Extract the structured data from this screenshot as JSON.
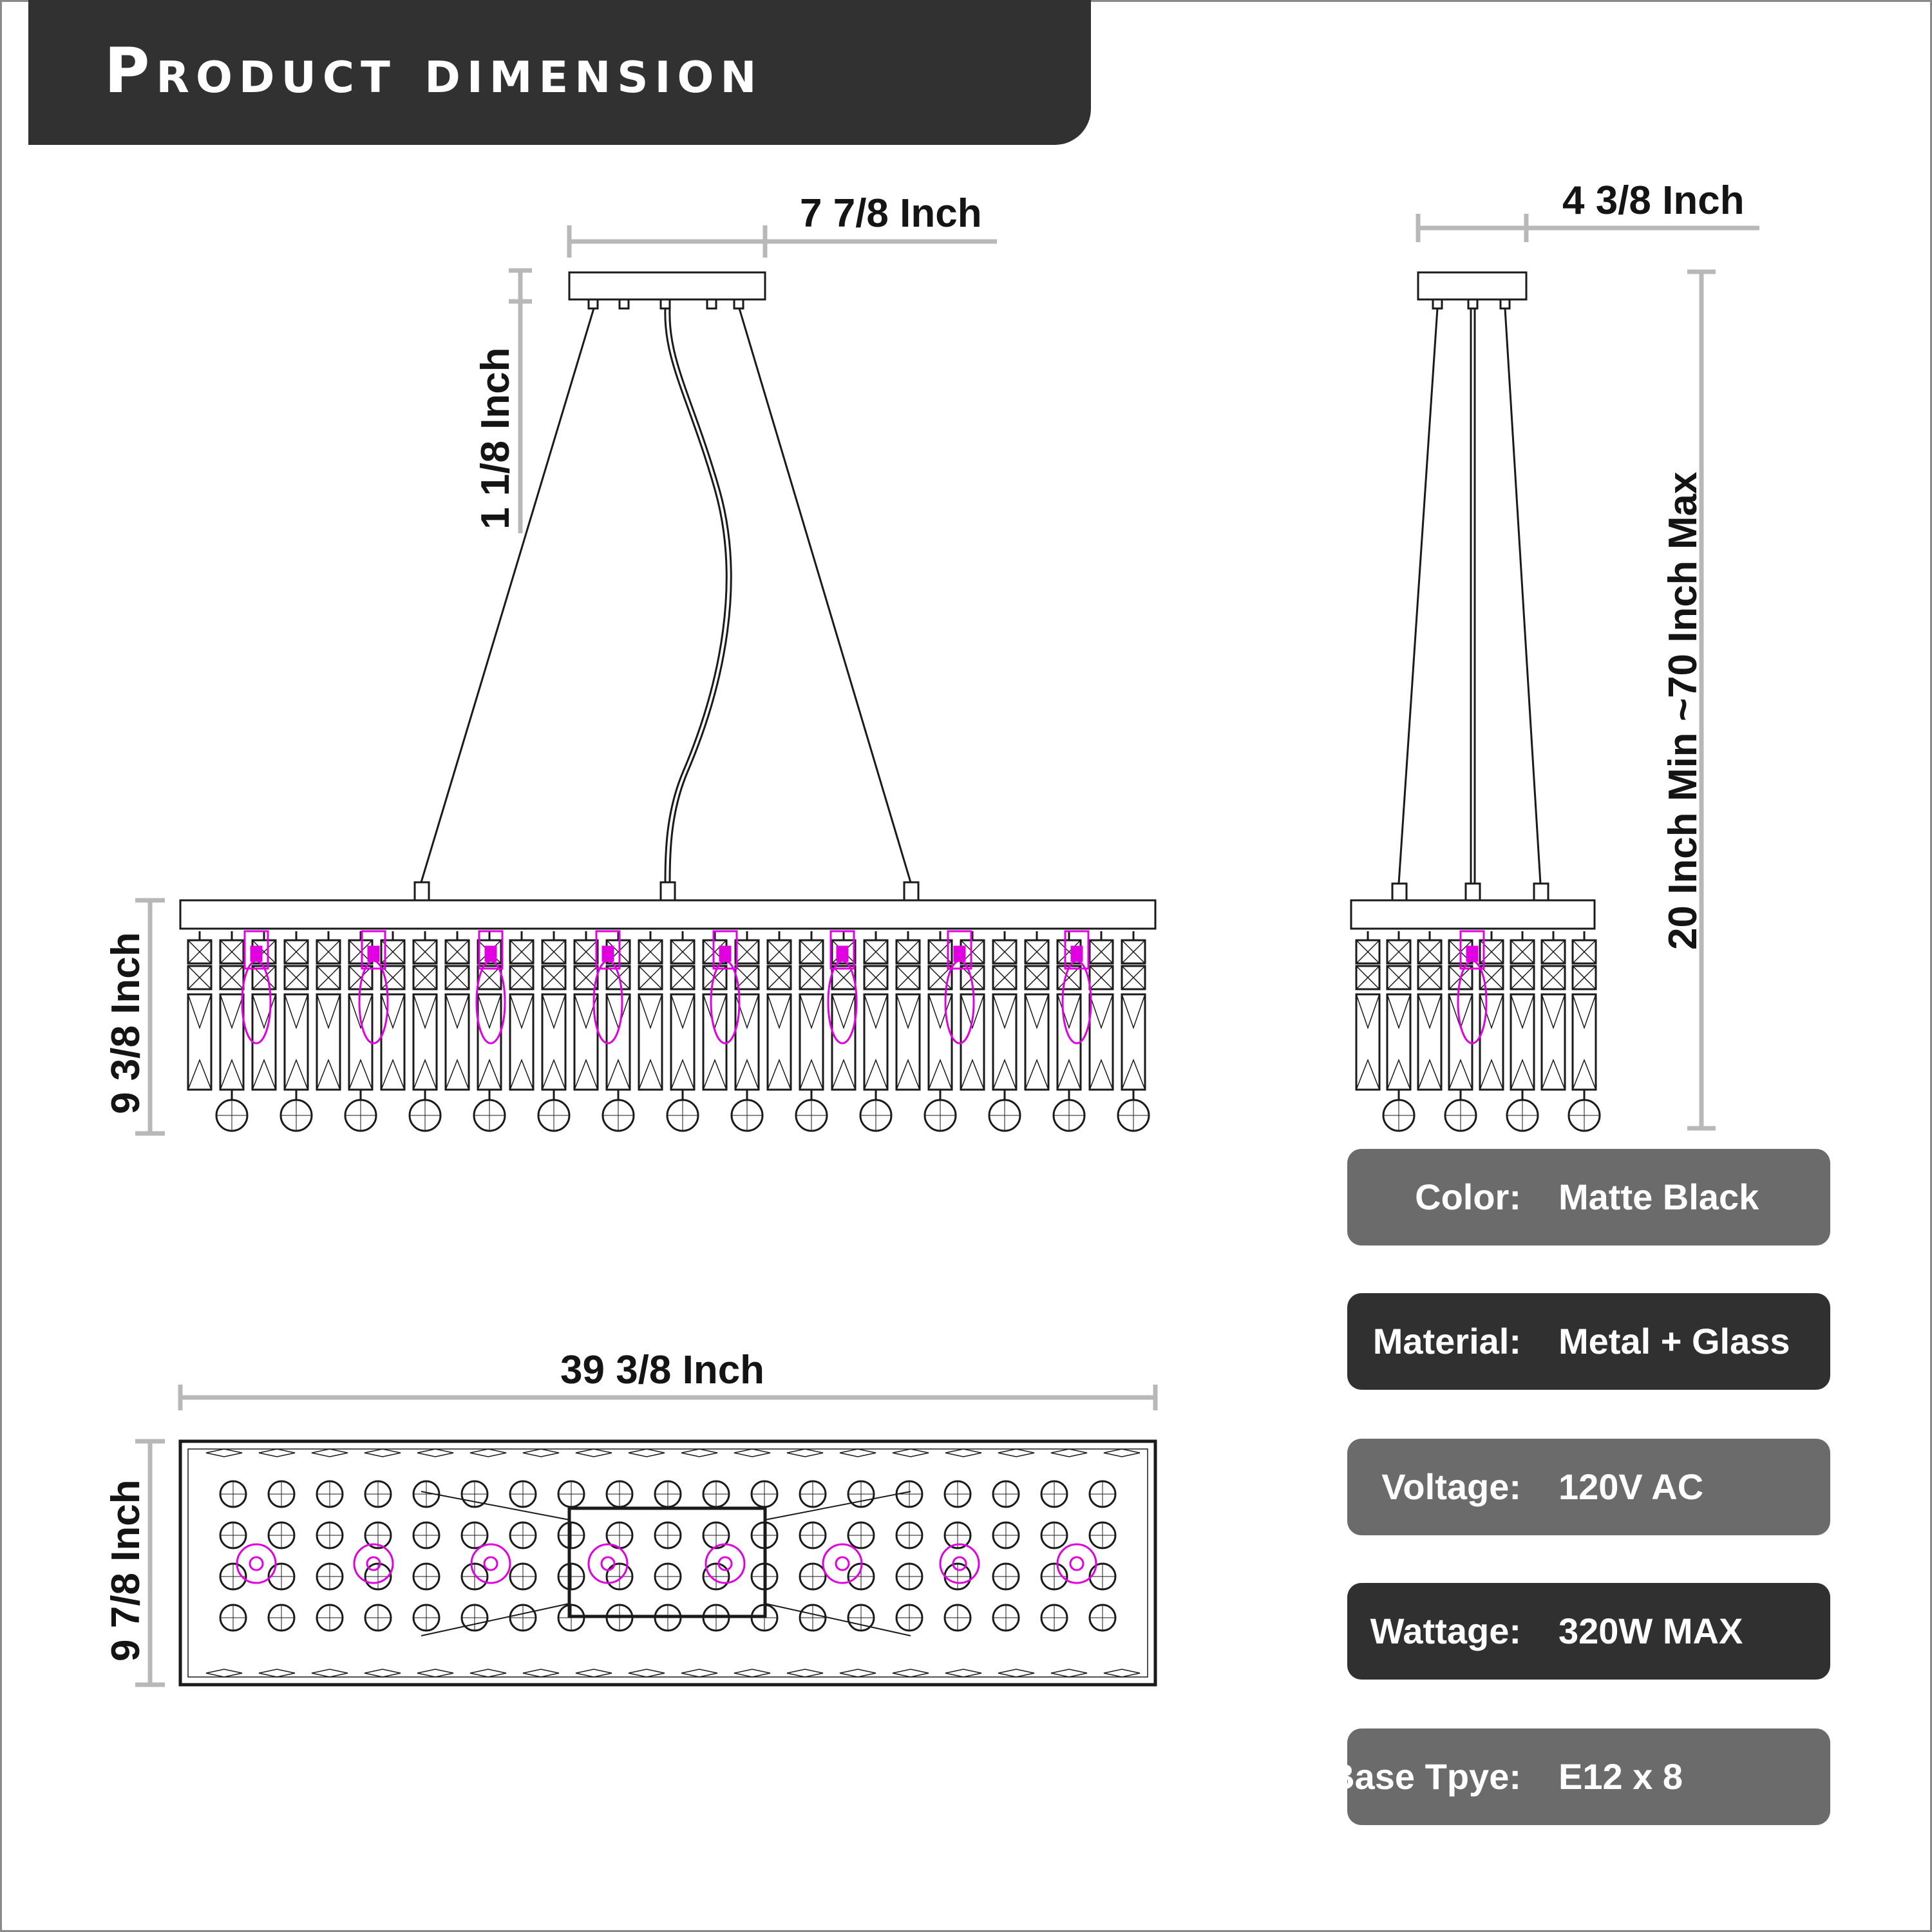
{
  "title": "Product dimension",
  "colors": {
    "banner": "#313131",
    "spec_light": "#6b6b6b",
    "spec_dark": "#303030",
    "dimension_line": "#b8b8b8",
    "drawing_line": "#1a1a1a",
    "highlight": "#e000e0"
  },
  "dimensions": {
    "canopy_width": "7 7/8 Inch",
    "canopy_height": "1 1/8 Inch",
    "body_height": "9 3/8 Inch",
    "side_width": "4 3/8 Inch",
    "hanging_height": "20 Inch Min ~70 Inch Max",
    "total_length": "39 3/8 Inch",
    "top_depth": "9 7/8 Inch"
  },
  "specs": [
    {
      "key": "Color:",
      "value": "Matte Black",
      "tone": "light"
    },
    {
      "key": "Material:",
      "value": "Metal + Glass",
      "tone": "dark"
    },
    {
      "key": "Voltage:",
      "value": "120V AC",
      "tone": "light"
    },
    {
      "key": "Wattage:",
      "value": "320W MAX",
      "tone": "dark"
    },
    {
      "key": "Base Tpye:",
      "value": "E12 x 8",
      "tone": "light"
    }
  ]
}
